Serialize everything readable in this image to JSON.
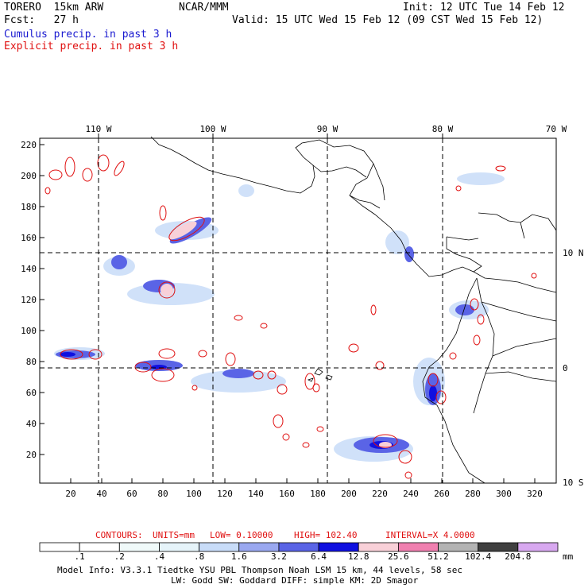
{
  "header": {
    "model": "TORERO  15km ARW",
    "org": "NCAR/MMM",
    "init": "Init: 12 UTC Tue 14 Feb 12",
    "fcst": "Fcst:   27 h",
    "valid": "Valid: 15 UTC Wed 15 Feb 12 (09 CST Wed 15 Feb 12)",
    "cumulus_label": "Cumulus precip. in past 3 h",
    "explicit_label": "Explicit precip. in past 3 h"
  },
  "map": {
    "lon_labels": [
      "110 W",
      "100 W",
      "90 W",
      "80 W",
      "70 W"
    ],
    "lat_labels": [
      "10 N",
      "0",
      "10 S"
    ],
    "x_ticks": [
      "20",
      "40",
      "60",
      "80",
      "100",
      "120",
      "140",
      "160",
      "180",
      "200",
      "220",
      "240",
      "260",
      "280",
      "300",
      "320"
    ],
    "y_ticks": [
      "20",
      "40",
      "60",
      "80",
      "100",
      "120",
      "140",
      "160",
      "180",
      "200",
      "220"
    ]
  },
  "contours": {
    "prefix": "CONTOURS:",
    "units": "UNITS=mm",
    "low": "LOW= 0.10000",
    "high": "HIGH=  102.40",
    "interval": "INTERVAL=X  4.0000"
  },
  "colorbar": {
    "thresholds": [
      ".1",
      ".2",
      ".4",
      ".8",
      "1.6",
      "3.2",
      "6.4",
      "12.8",
      "25.6",
      "51.2",
      "102.4",
      "204.8"
    ],
    "colors": [
      "#ffffff",
      "#ffffff",
      "#f0fafa",
      "#e6f4fa",
      "#c8dcf8",
      "#9aa8f0",
      "#5a64e6",
      "#1010e0",
      "#f8d0d8",
      "#f080b0",
      "#b4b4b4",
      "#404040",
      "#d8a8f0"
    ],
    "unit": "mm"
  },
  "footer": {
    "line1": "Model Info: V3.3.1    Tiedtke YSU PBL  Thompson    Noah LSM  15 km,    44 levels,   58 sec",
    "line2": "LW: Godd SW: Goddard DIFF: simple KM: 2D Smagor"
  }
}
